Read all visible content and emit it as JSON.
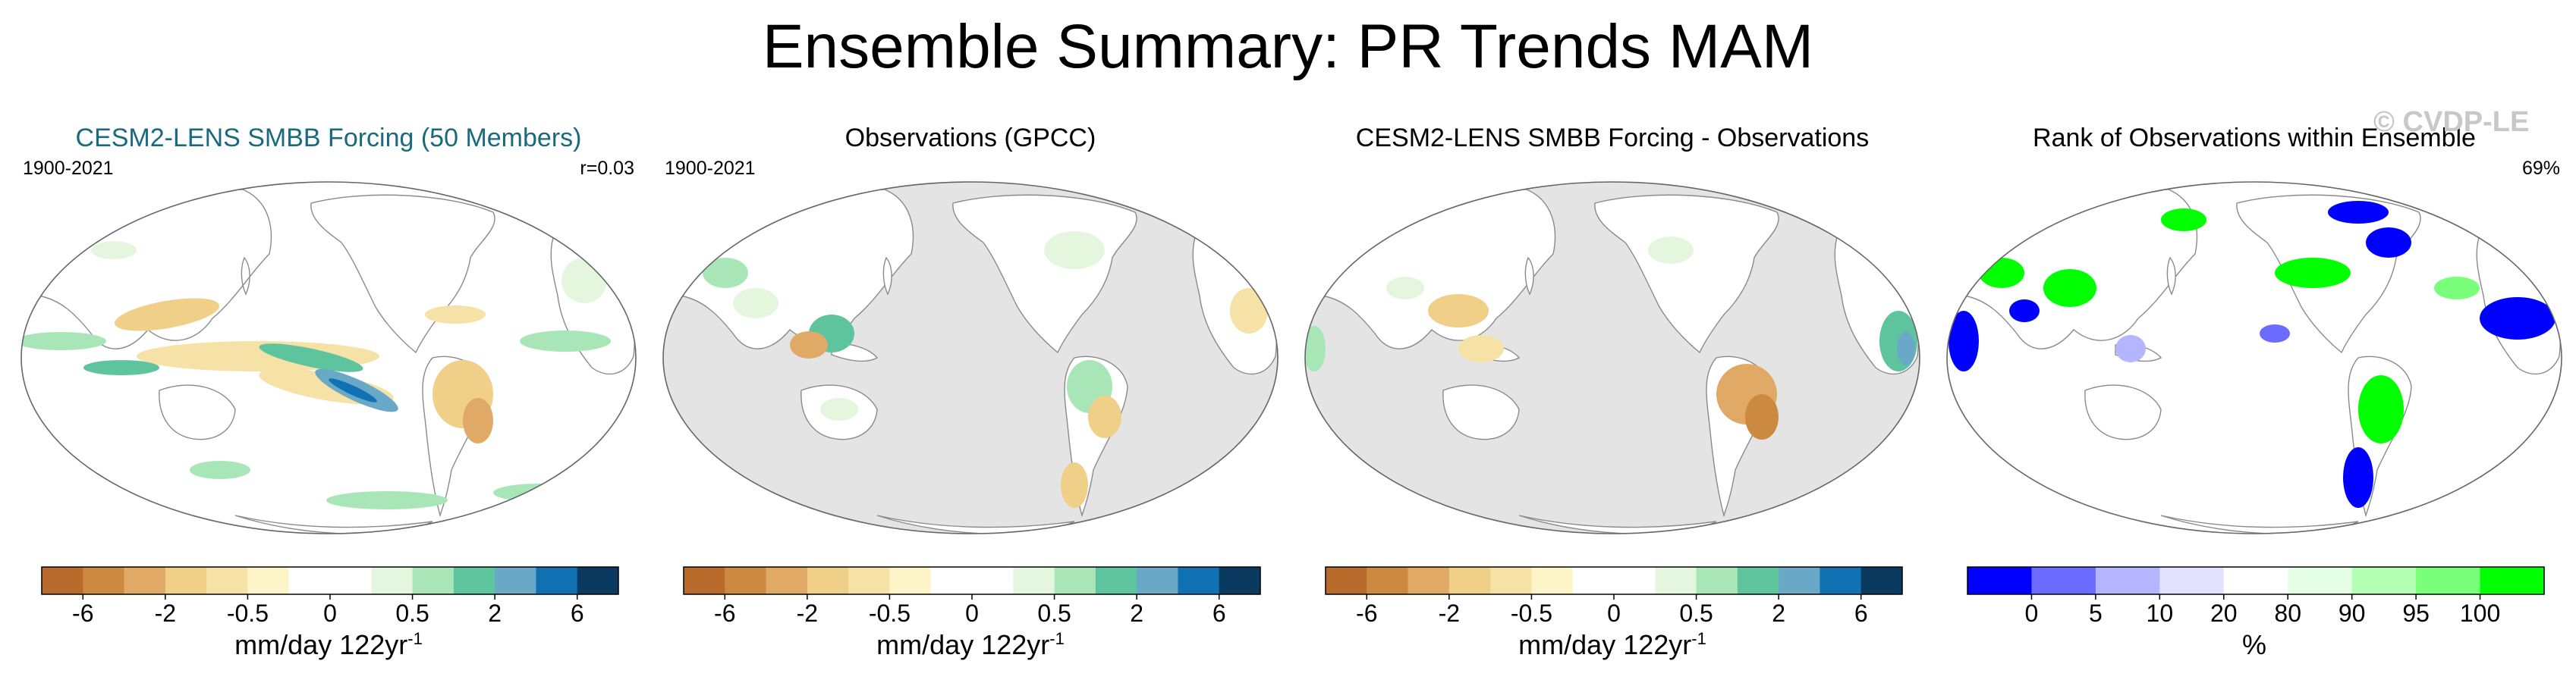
{
  "title": "Ensemble Summary: PR Trends MAM",
  "watermark": "© CVDP-LE",
  "colors": {
    "land_missing": "#e4e4e4",
    "coast": "#8a8a8a",
    "dry": [
      "#b86b2a",
      "#cc8a40",
      "#e0aa66",
      "#f0cf88",
      "#f6e2a6",
      "#fdf5c8"
    ],
    "wet": [
      "#e4f7de",
      "#a8e6b8",
      "#5ec49e",
      "#6aa8c8",
      "#1072b2",
      "#0a3a60"
    ],
    "rank": [
      "#0000ff",
      "#6b6bff",
      "#b4b4ff",
      "#e2e2ff",
      "#ffffff",
      "#e4ffe4",
      "#b4ffb4",
      "#7aff7a",
      "#00ff00"
    ]
  },
  "chart_data": [
    {
      "type": "heatmap",
      "title": "CESM2-LENS SMBB Forcing (50 Members)",
      "title_color": "#1a6a7e",
      "period": "1900-2021",
      "corner_text": "r=0.03",
      "colorbar": {
        "label": "mm/day 122yr",
        "label_sup": "-1",
        "ticks": [
          "-6",
          "-2",
          "-0.5",
          "0",
          "0.5",
          "2",
          "6"
        ]
      }
    },
    {
      "type": "heatmap",
      "title": "Observations (GPCC)",
      "title_color": "#000000",
      "period": "1900-2021",
      "corner_text": "",
      "colorbar": {
        "label": "mm/day 122yr",
        "label_sup": "-1",
        "ticks": [
          "-6",
          "-2",
          "-0.5",
          "0",
          "0.5",
          "2",
          "6"
        ]
      }
    },
    {
      "type": "heatmap",
      "title": "CESM2-LENS SMBB Forcing - Observations",
      "title_color": "#000000",
      "period": "",
      "corner_text": "",
      "colorbar": {
        "label": "mm/day 122yr",
        "label_sup": "-1",
        "ticks": [
          "-6",
          "-2",
          "-0.5",
          "0",
          "0.5",
          "2",
          "6"
        ]
      }
    },
    {
      "type": "heatmap",
      "title": "Rank of Observations within Ensemble",
      "title_color": "#000000",
      "period": "",
      "corner_text": "69%",
      "colorbar": {
        "label": "%",
        "label_sup": "",
        "ticks": [
          "0",
          "5",
          "10",
          "20",
          "80",
          "90",
          "95",
          "100"
        ]
      }
    }
  ]
}
